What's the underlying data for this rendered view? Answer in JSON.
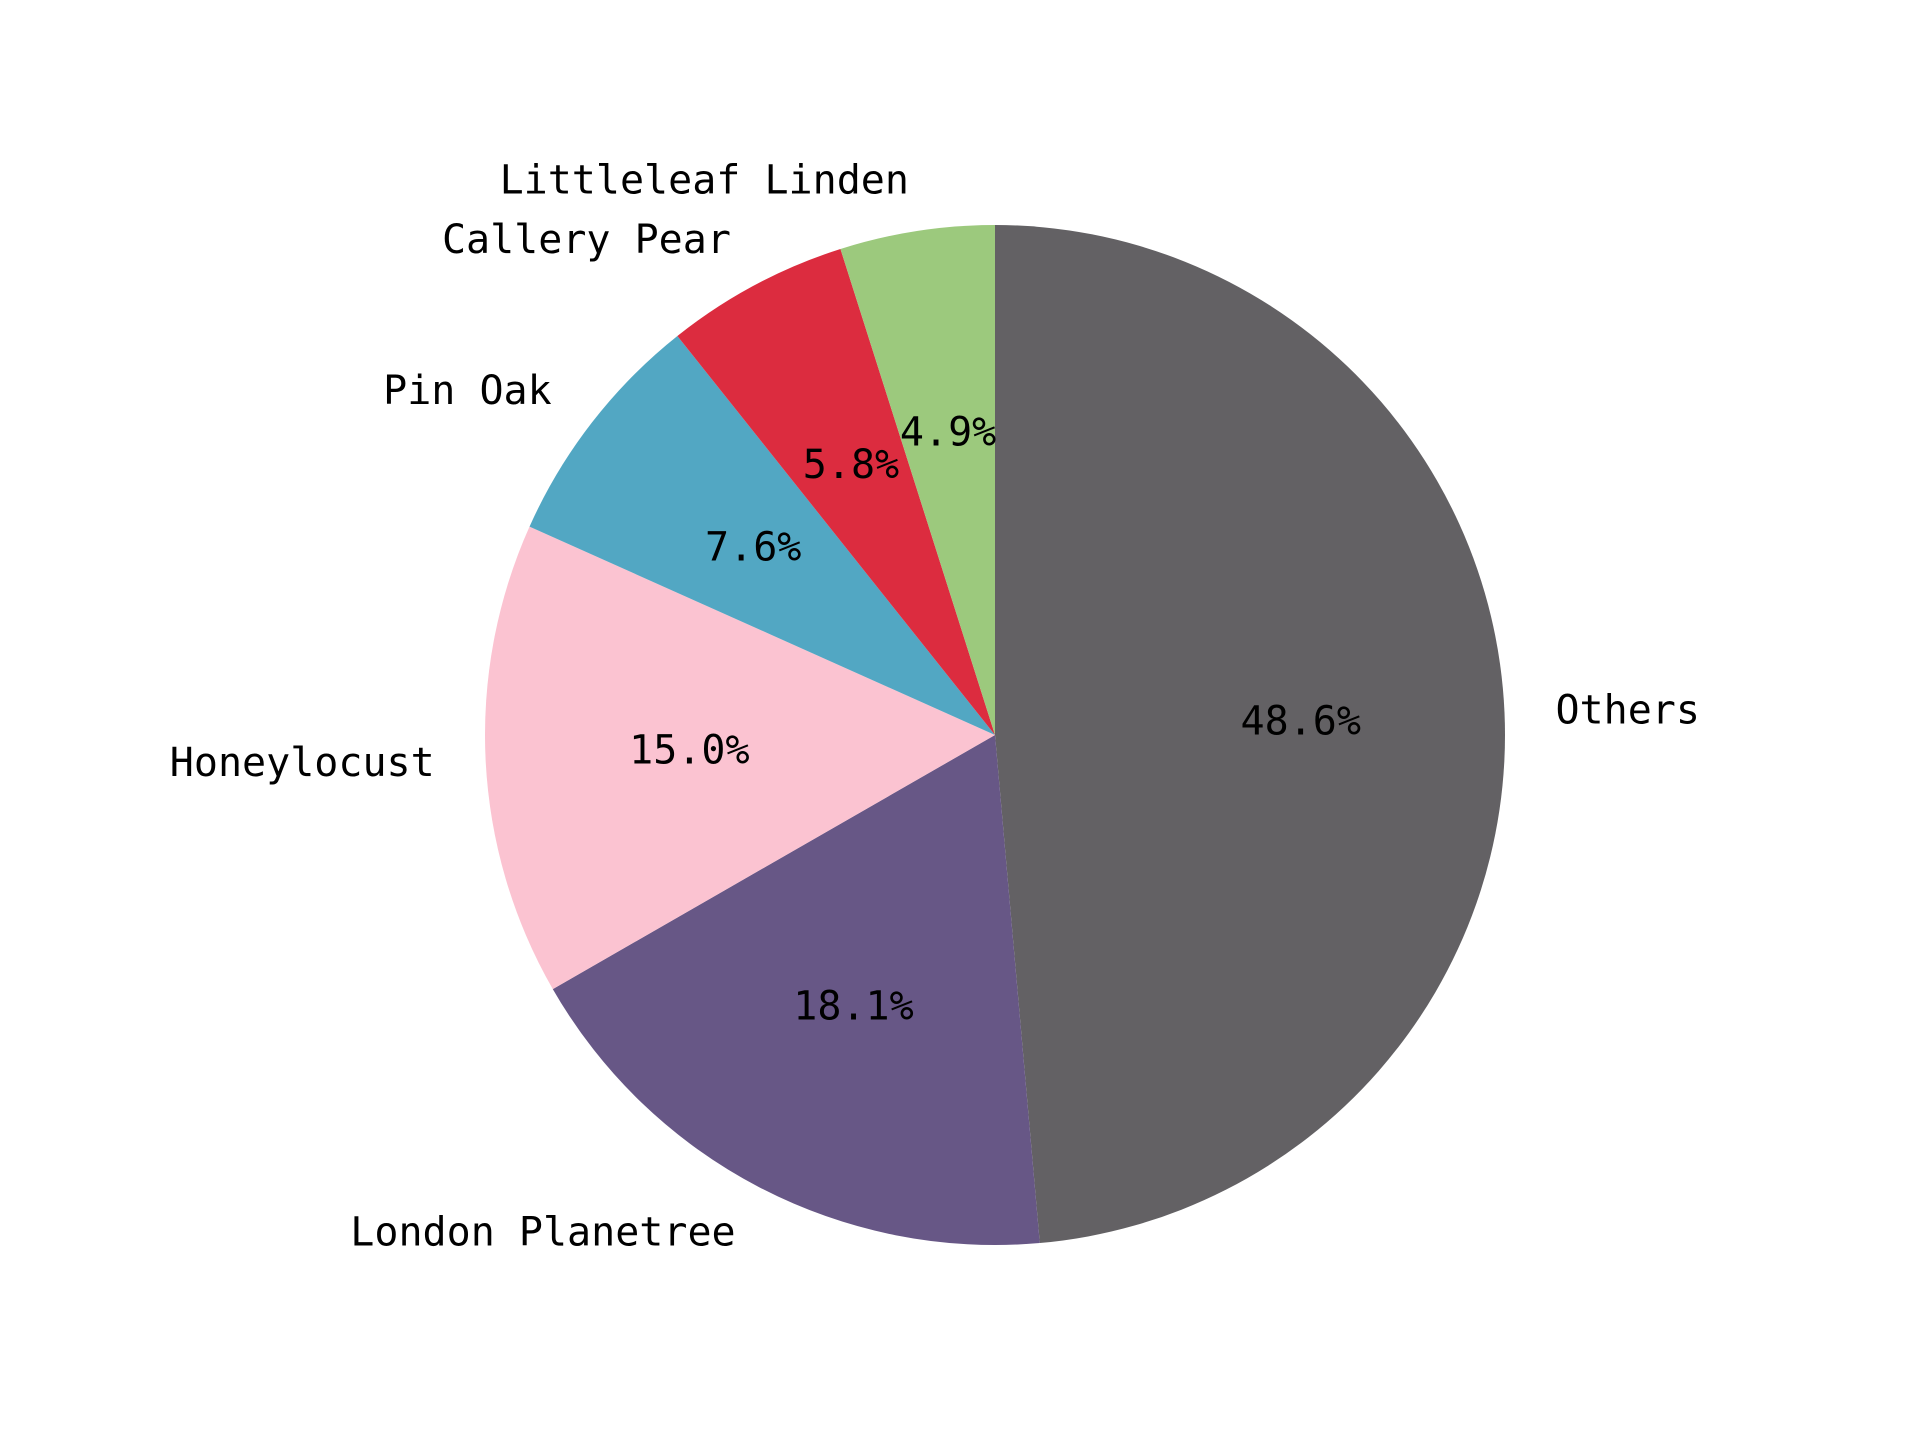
{
  "chart_data": {
    "type": "pie",
    "title": "",
    "labels": [
      "Others",
      "London Planetree",
      "Honeylocust",
      "Pin Oak",
      "Callery Pear",
      "Littleleaf Linden"
    ],
    "percent_labels": [
      "48.6%",
      "18.1%",
      "15.0%",
      "7.6%",
      "5.8%",
      "4.9%"
    ],
    "values": [
      48.6,
      18.1,
      15.0,
      7.6,
      5.8,
      4.9
    ],
    "colors": [
      "#636164",
      "#675786",
      "#fbc3d1",
      "#52a7c3",
      "#dc2c3f",
      "#9cc97d"
    ],
    "start_angle_deg": 90,
    "direction": "clockwise",
    "legend": "none"
  }
}
